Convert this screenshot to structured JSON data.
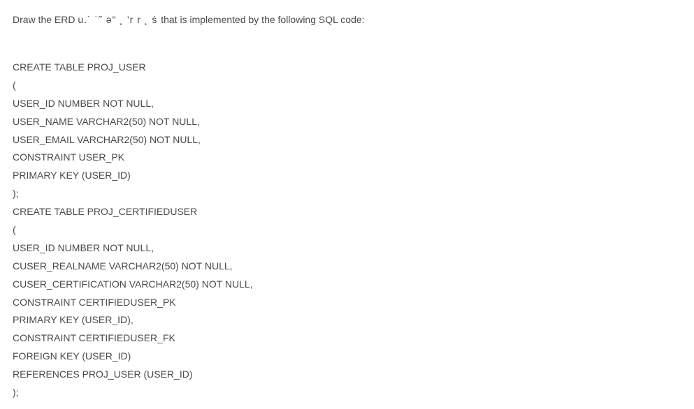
{
  "prompt": {
    "prefix": "Draw the ERD ",
    "obscured": "u.˙ ˙˜ ə\"  ˛  'r r  ˛  ṡ ",
    "suffix": "that is implemented by the following SQL code:"
  },
  "code": {
    "lines": [
      "CREATE TABLE PROJ_USER",
      "(",
      "USER_ID NUMBER NOT NULL,",
      "USER_NAME VARCHAR2(50) NOT NULL,",
      "USER_EMAIL VARCHAR2(50) NOT NULL,",
      "CONSTRAINT USER_PK",
      "PRIMARY KEY (USER_ID)",
      ");",
      "CREATE TABLE PROJ_CERTIFIEDUSER",
      "(",
      "USER_ID NUMBER NOT NULL,",
      "CUSER_REALNAME VARCHAR2(50) NOT NULL,",
      "CUSER_CERTIFICATION VARCHAR2(50) NOT NULL,",
      "CONSTRAINT CERTIFIEDUSER_PK",
      "PRIMARY KEY (USER_ID),",
      "CONSTRAINT CERTIFIEDUSER_FK",
      "FOREIGN KEY (USER_ID)",
      "REFERENCES PROJ_USER (USER_ID)",
      ");"
    ]
  }
}
